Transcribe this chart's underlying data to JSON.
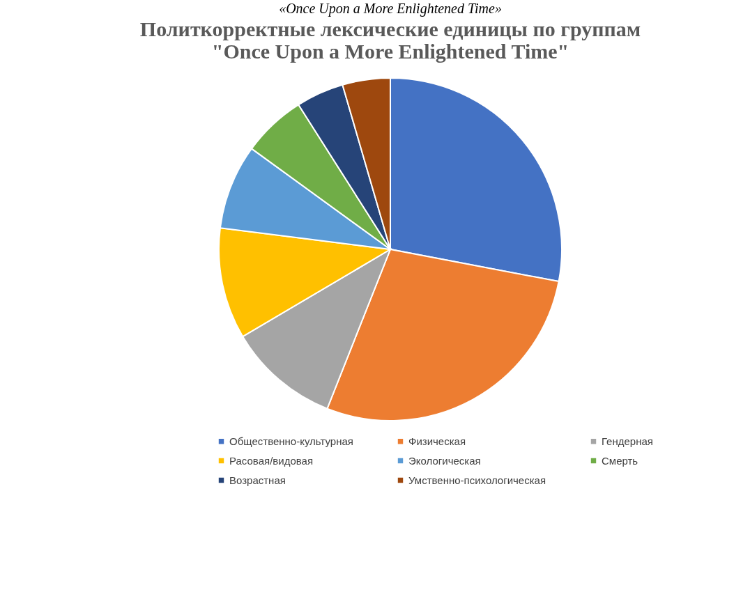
{
  "chart_data": {
    "type": "pie",
    "title": "Политкорректные лексические единицы по группам\n\"Once Upon a More Enlightened Time\"",
    "annotations": [
      "«Once Upon a More Enlightened Time»"
    ],
    "categories": [
      "Общественно-культурная",
      "Физическая",
      "Гендерная",
      "Расовая/видовая",
      "Экологическая",
      "Смерть",
      "Возрастная",
      "Умственно-психологическая"
    ],
    "values": [
      28,
      28,
      10.5,
      10.5,
      8,
      6,
      4.5,
      4.5
    ],
    "colors": [
      "#4472c4",
      "#ed7d31",
      "#a5a5a5",
      "#ffc000",
      "#5b9bd5",
      "#70ad47",
      "#264478",
      "#9e480e"
    ],
    "legend": "bottom"
  }
}
